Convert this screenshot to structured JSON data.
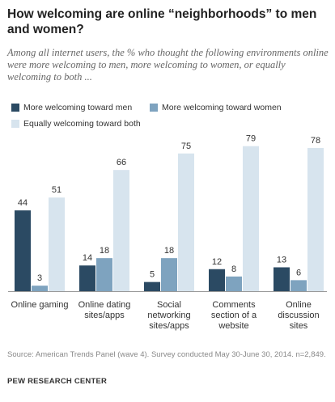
{
  "chart_data": {
    "type": "bar",
    "title": "How welcoming are online “neighborhoods”  to men and women?",
    "subtitle": "Among all internet users, the % who thought the following environments online were more welcoming to men, more welcoming to women, or equally welcoming to both ...",
    "categories": [
      [
        "Online gaming"
      ],
      [
        "Online dating",
        "sites/apps"
      ],
      [
        "Social",
        "networking",
        "sites/apps"
      ],
      [
        "Comments",
        "section of a",
        "website"
      ],
      [
        "Online",
        "discussion",
        "sites"
      ]
    ],
    "series": [
      {
        "name": "More welcoming toward men",
        "color": "#2b4a63",
        "values": [
          44,
          14,
          5,
          12,
          13
        ]
      },
      {
        "name": "More welcoming toward women",
        "color": "#7ea3bf",
        "values": [
          3,
          18,
          18,
          8,
          6
        ]
      },
      {
        "name": "Equally welcoming toward both",
        "color": "#d7e4ee",
        "values": [
          51,
          66,
          75,
          79,
          78
        ]
      }
    ],
    "ylim": [
      0,
      100
    ],
    "grid": false,
    "legend": "top-left",
    "xlabel": "",
    "ylabel": ""
  },
  "footer": {
    "source": "Source: American Trends Panel (wave 4). Survey conducted May 30-June 30, 2014. n=2,849.",
    "brand": "PEW RESEARCH CENTER"
  }
}
